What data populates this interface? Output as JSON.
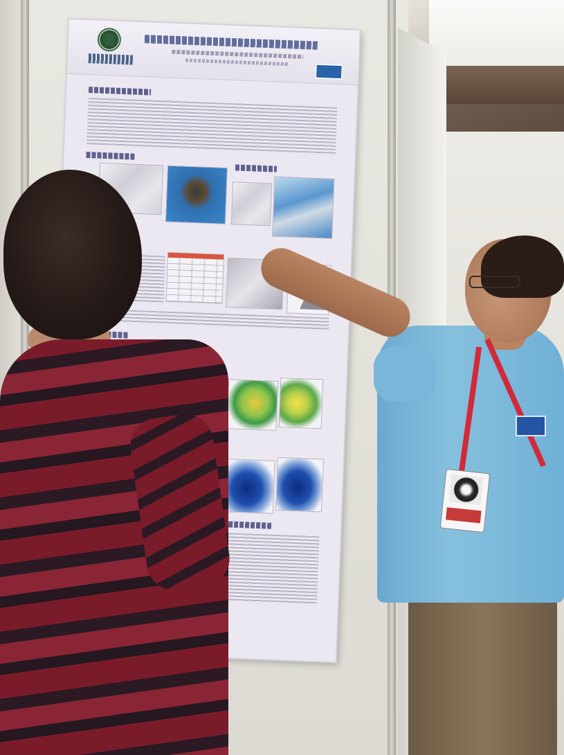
{
  "scene": {
    "colors": {
      "poster_bg": "#ece8f1",
      "panel": "#e9e8e2",
      "shirt_blue": "#7fbadc",
      "lanyard_red": "#d22a3a",
      "sweater_red": "#7a1b2a"
    }
  }
}
